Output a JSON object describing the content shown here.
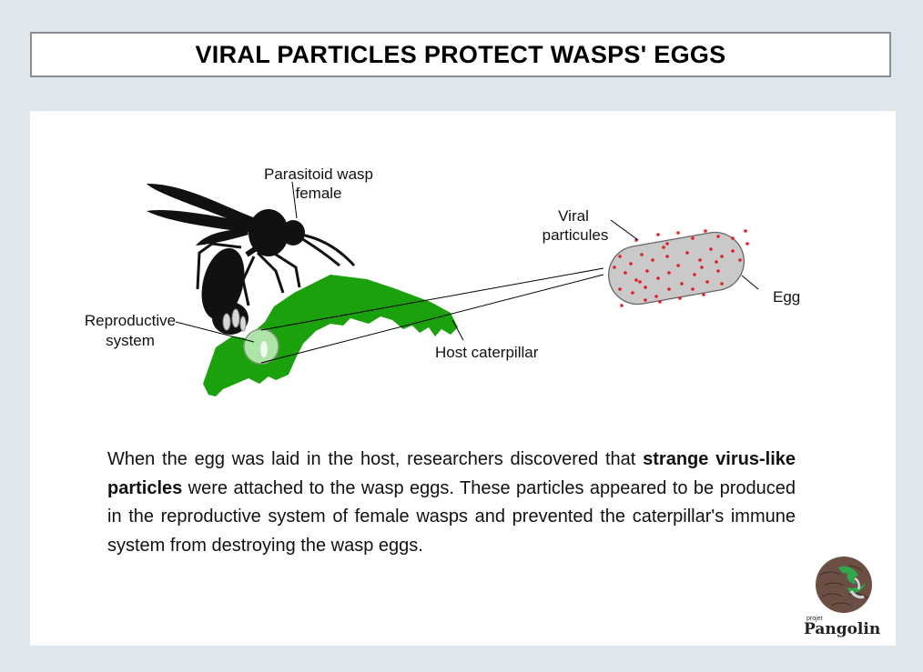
{
  "title": "VIRAL PARTICLES PROTECT WASPS' EGGS",
  "labels": {
    "wasp_line1": "Parasitoid wasp",
    "wasp_line2": "female",
    "repro_line1": "Reproductive",
    "repro_line2": "system",
    "caterpillar": "Host caterpillar",
    "viral_line1": "Viral",
    "viral_line2": "particules",
    "egg": "Egg"
  },
  "paragraph": {
    "before": "When the egg was laid in the host, researchers discovered that ",
    "bold": "strange virus-like particles",
    "after": " were attached to the wasp eggs. These particles appeared to be produced in the reproductive system of female wasps and prevented the caterpillar's immune system from destroying the wasp eggs."
  },
  "logo": {
    "small": "projet",
    "name": "Pangolin"
  },
  "colors": {
    "caterpillar": "#1aa10c",
    "egg_fill": "#c9c9c9",
    "particle": "#e02020",
    "wasp": "#111111"
  },
  "icons": [
    "wasp-icon",
    "caterpillar-icon",
    "egg-icon",
    "magnifier-icon",
    "pangolin-logo-icon"
  ]
}
